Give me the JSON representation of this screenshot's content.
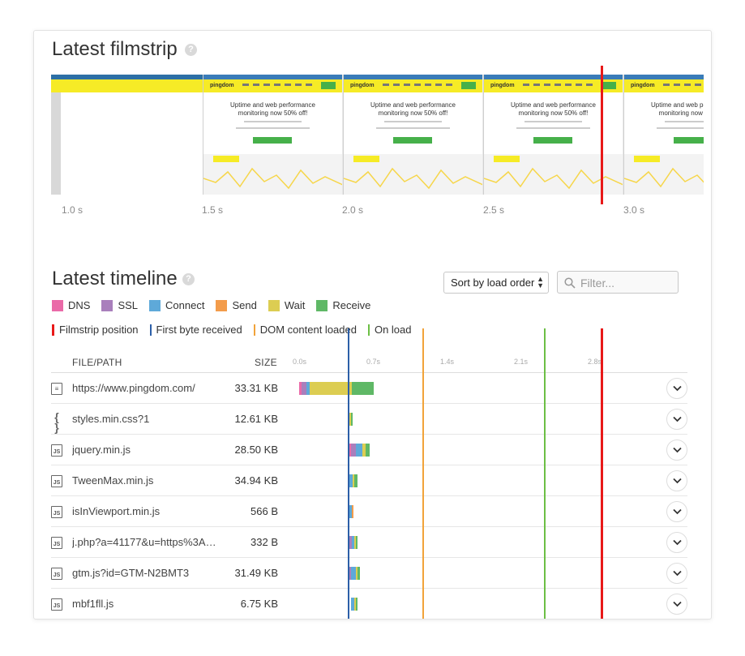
{
  "filmstrip": {
    "title": "Latest filmstrip",
    "help": "?",
    "frame_headline_line1": "Uptime and web performance",
    "frame_headline_line2": "monitoring now 50% off!",
    "frame_logo": "pingdom",
    "ticks": [
      "1.0 s",
      "1.5 s",
      "2.0 s",
      "2.5 s",
      "3.0 s"
    ]
  },
  "timeline": {
    "title": "Latest timeline",
    "help": "?",
    "sort_label": "Sort by load order",
    "filter_placeholder": "Filter...",
    "legend_phases": [
      {
        "label": "DNS",
        "color": "#ea6aa8"
      },
      {
        "label": "SSL",
        "color": "#a97fbc"
      },
      {
        "label": "Connect",
        "color": "#5ea9d9"
      },
      {
        "label": "Send",
        "color": "#f39c4b"
      },
      {
        "label": "Wait",
        "color": "#dccd52"
      },
      {
        "label": "Receive",
        "color": "#5fb866"
      }
    ],
    "legend_markers": [
      {
        "label": "Filmstrip position",
        "color": "#e81919"
      },
      {
        "label": "First byte received",
        "color": "#2c5fa8"
      },
      {
        "label": "DOM content loaded",
        "color": "#f1a33a"
      },
      {
        "label": "On load",
        "color": "#6cbf45"
      }
    ],
    "col_file": "FILE/PATH",
    "col_size": "SIZE",
    "scale_ticks": [
      "0.0s",
      "0.7s",
      "1.4s",
      "2.1s",
      "2.8s"
    ],
    "rows": [
      {
        "icon": "document-icon",
        "name": "https://www.pingdom.com/",
        "size": "33.31 KB"
      },
      {
        "icon": "css-icon",
        "name": "styles.min.css?1",
        "size": "12.61 KB"
      },
      {
        "icon": "js-icon",
        "name": "jquery.min.js",
        "size": "28.50 KB"
      },
      {
        "icon": "js-icon",
        "name": "TweenMax.min.js",
        "size": "34.94 KB"
      },
      {
        "icon": "js-icon",
        "name": "isInViewport.min.js",
        "size": "566 B"
      },
      {
        "icon": "js-icon",
        "name": "j.php?a=41177&u=https%3A…",
        "size": "332 B"
      },
      {
        "icon": "js-icon",
        "name": "gtm.js?id=GTM-N2BMT3",
        "size": "31.49 KB"
      },
      {
        "icon": "js-icon",
        "name": "mbf1fll.js",
        "size": "6.75 KB"
      }
    ]
  }
}
